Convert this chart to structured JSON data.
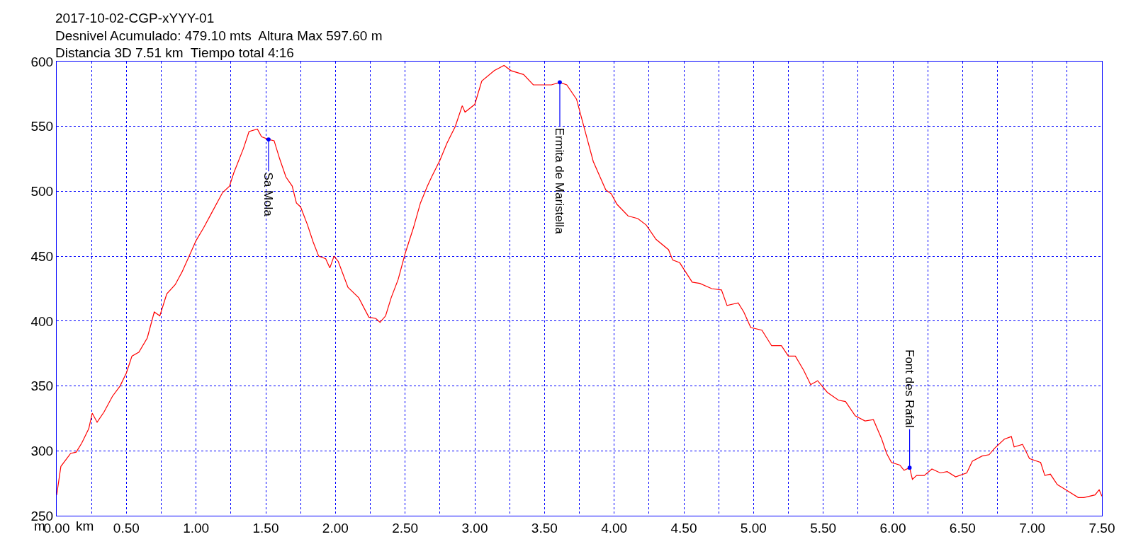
{
  "chart_data": {
    "type": "line",
    "title": "2017-10-02-CGP-xYYY-01\nDesnivel Acumulado: 479.10 mts  Altura Max 597.60 m\nDistancia 3D 7.51 km  Tiempo total 4:16",
    "xlabel": "km",
    "ylabel": "m",
    "x": [
      0,
      0.03,
      0.1,
      0.14,
      0.18,
      0.23,
      0.255,
      0.29,
      0.34,
      0.4,
      0.455,
      0.5,
      0.54,
      0.59,
      0.65,
      0.7,
      0.74,
      0.79,
      0.85,
      0.9,
      0.95,
      1.0,
      1.055,
      1.11,
      1.19,
      1.24,
      1.27,
      1.34,
      1.38,
      1.44,
      1.47,
      1.52,
      1.56,
      1.6,
      1.645,
      1.69,
      1.72,
      1.75,
      1.8,
      1.84,
      1.88,
      1.93,
      1.96,
      1.99,
      2.02,
      2.09,
      2.167,
      2.24,
      2.29,
      2.32,
      2.36,
      2.4,
      2.45,
      2.5,
      2.56,
      2.61,
      2.66,
      2.69,
      2.75,
      2.8,
      2.86,
      2.91,
      2.93,
      3.0,
      3.05,
      3.14,
      3.21,
      3.26,
      3.35,
      3.42,
      3.47,
      3.55,
      3.61,
      3.66,
      3.73,
      3.77,
      3.81,
      3.85,
      3.94,
      3.98,
      4.02,
      4.1,
      4.17,
      4.23,
      4.3,
      4.39,
      4.42,
      4.47,
      4.56,
      4.615,
      4.7,
      4.77,
      4.81,
      4.89,
      4.93,
      4.98,
      5.06,
      5.13,
      5.2,
      5.25,
      5.3,
      5.36,
      5.41,
      5.46,
      5.53,
      5.61,
      5.66,
      5.73,
      5.8,
      5.86,
      5.92,
      5.955,
      5.99,
      6.05,
      6.08,
      6.12,
      6.14,
      6.17,
      6.225,
      6.28,
      6.34,
      6.39,
      6.45,
      6.53,
      6.57,
      6.64,
      6.69,
      6.73,
      6.8,
      6.85,
      6.87,
      6.93,
      6.98,
      7.06,
      7.09,
      7.13,
      7.18,
      7.24,
      7.33,
      7.37,
      7.45,
      7.48,
      7.5
    ],
    "series": [
      {
        "color": "#ff0000",
        "values": [
          266,
          288,
          298,
          299,
          306,
          317,
          329,
          322,
          330,
          342,
          350,
          360,
          373,
          376,
          387,
          407,
          404,
          421,
          428,
          438,
          450,
          462,
          472,
          483,
          499,
          504,
          514,
          533,
          546,
          548,
          542,
          540,
          539,
          525,
          511,
          504,
          491,
          488,
          474,
          461,
          450,
          448,
          441,
          450,
          446,
          426,
          418,
          403,
          402,
          399,
          404,
          418,
          432,
          452,
          472,
          491,
          504,
          511,
          524,
          537,
          550,
          566,
          561,
          567,
          585,
          593,
          597,
          593,
          590,
          582,
          582,
          582,
          584,
          582,
          571,
          555,
          539,
          523,
          501,
          498,
          490,
          481,
          479,
          474,
          463,
          455,
          447,
          445,
          430,
          429,
          425,
          424,
          412,
          414,
          407,
          395,
          393,
          381,
          381,
          373,
          373,
          362,
          351,
          354,
          345,
          339,
          338,
          327,
          323,
          324,
          309,
          298,
          291,
          289,
          285,
          287,
          278,
          281,
          281,
          286,
          283,
          284,
          280,
          283,
          292,
          296,
          297,
          302,
          309,
          311,
          303,
          305,
          294,
          291,
          281,
          282,
          274,
          270,
          264,
          264,
          266,
          270,
          265
        ]
      }
    ],
    "xlim": [
      0,
      7.5
    ],
    "ylim": [
      250,
      600
    ],
    "xticks": [
      {
        "value": 0,
        "label": "0.00"
      },
      {
        "value": 0.25,
        "label": null
      },
      {
        "value": 0.5,
        "label": "0.50"
      },
      {
        "value": 0.75,
        "label": null
      },
      {
        "value": 1,
        "label": "1.00"
      },
      {
        "value": 1.25,
        "label": null
      },
      {
        "value": 1.5,
        "label": "1.50"
      },
      {
        "value": 1.75,
        "label": null
      },
      {
        "value": 2,
        "label": "2.00"
      },
      {
        "value": 2.25,
        "label": null
      },
      {
        "value": 2.5,
        "label": "2.50"
      },
      {
        "value": 2.75,
        "label": null
      },
      {
        "value": 3,
        "label": "3.00"
      },
      {
        "value": 3.25,
        "label": null
      },
      {
        "value": 3.5,
        "label": "3.50"
      },
      {
        "value": 3.75,
        "label": null
      },
      {
        "value": 4,
        "label": "4.00"
      },
      {
        "value": 4.25,
        "label": null
      },
      {
        "value": 4.5,
        "label": "4.50"
      },
      {
        "value": 4.75,
        "label": null
      },
      {
        "value": 5,
        "label": "5.00"
      },
      {
        "value": 5.25,
        "label": null
      },
      {
        "value": 5.5,
        "label": "5.50"
      },
      {
        "value": 5.75,
        "label": null
      },
      {
        "value": 6,
        "label": "6.00"
      },
      {
        "value": 6.25,
        "label": null
      },
      {
        "value": 6.5,
        "label": "6.50"
      },
      {
        "value": 6.75,
        "label": null
      },
      {
        "value": 7,
        "label": "7.00"
      },
      {
        "value": 7.25,
        "label": null
      },
      {
        "value": 7.5,
        "label": "7.50"
      }
    ],
    "yticks": [
      250,
      300,
      350,
      400,
      450,
      500,
      550,
      600
    ],
    "annotations": [
      {
        "text": "Sa Mola",
        "x": 1.52,
        "y": 540
      },
      {
        "text": "Ermita de Maristella",
        "x": 3.61,
        "y": 584
      },
      {
        "text": "Font des Rafal",
        "x": 6.12,
        "y": 287
      }
    ],
    "grid": true,
    "line_style": "solid",
    "marker": "none"
  }
}
